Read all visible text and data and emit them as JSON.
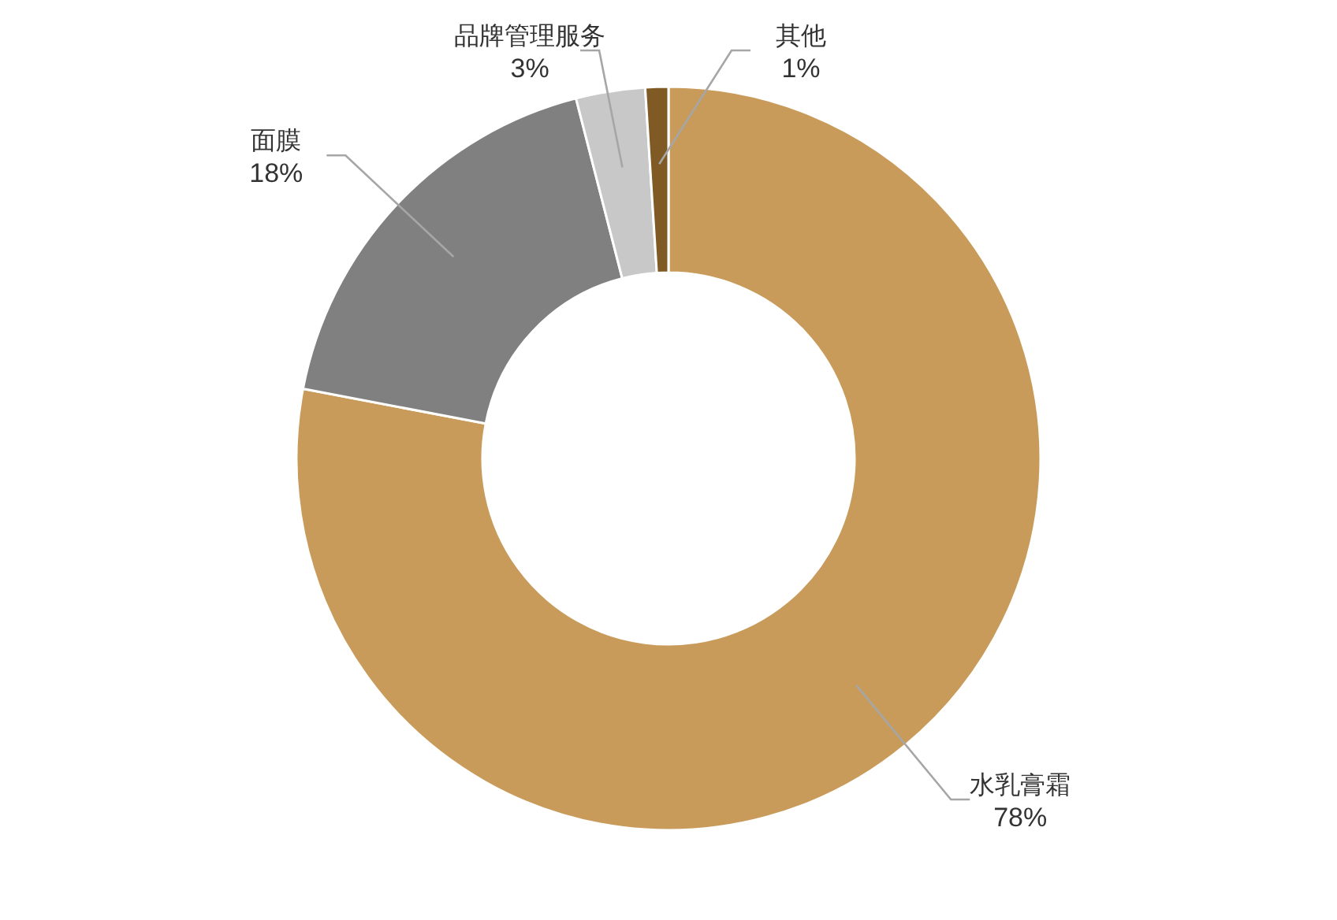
{
  "chart_data": {
    "type": "donut",
    "categories": [
      "水乳膏霜",
      "面膜",
      "品牌管理服务",
      "其他"
    ],
    "values": [
      78,
      18,
      3,
      1
    ],
    "colors": [
      "#c99b5a",
      "#808080",
      "#c8c8c8",
      "#7f5a24"
    ],
    "value_labels": [
      "78%",
      "18%",
      "3%",
      "1%"
    ]
  }
}
